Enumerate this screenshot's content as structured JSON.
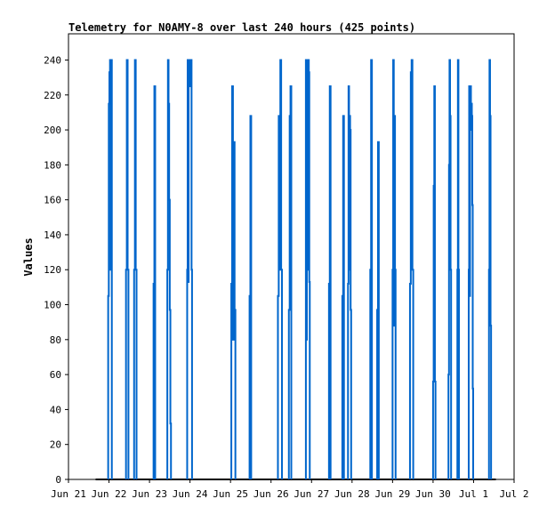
{
  "chart_data": {
    "type": "line",
    "title": "Telemetry for N0AMY-8 over last 240 hours (425 points)",
    "xlabel": "",
    "ylabel": "Values",
    "xlim": [
      0,
      11
    ],
    "ylim": [
      0,
      255
    ],
    "x_ticks": [
      {
        "label": "Jun 21",
        "value": 0
      },
      {
        "label": "Jun 22",
        "value": 1
      },
      {
        "label": "Jun 23",
        "value": 2
      },
      {
        "label": "Jun 24",
        "value": 3
      },
      {
        "label": "Jun 25",
        "value": 4
      },
      {
        "label": "Jun 26",
        "value": 5
      },
      {
        "label": "Jun 27",
        "value": 6
      },
      {
        "label": "Jun 28",
        "value": 7
      },
      {
        "label": "Jun 29",
        "value": 8
      },
      {
        "label": "Jun 30",
        "value": 9
      },
      {
        "label": "Jul 1",
        "value": 10
      },
      {
        "label": "Jul 2",
        "value": 11
      }
    ],
    "y_ticks": [
      0,
      20,
      40,
      60,
      80,
      100,
      120,
      140,
      160,
      180,
      200,
      220,
      240
    ],
    "grid": false,
    "colors": {
      "series": "#0066cc",
      "baseline": "#000000",
      "axes": "#000000"
    },
    "series": [
      {
        "color": "#0066cc",
        "bursts": [
          {
            "x": 0.98,
            "dx": 0.015,
            "values": [
              105,
              215,
              233,
              240,
              120,
              240
            ]
          },
          {
            "x": 1.42,
            "dx": 0.02,
            "values": [
              120,
              240,
              120
            ]
          },
          {
            "x": 1.62,
            "dx": 0.02,
            "values": [
              120,
              240,
              120
            ]
          },
          {
            "x": 2.1,
            "dx": 0.02,
            "values": [
              112,
              225
            ]
          },
          {
            "x": 2.44,
            "dx": 0.015,
            "values": [
              120,
              240,
              215,
              160,
              97,
              32
            ]
          },
          {
            "x": 2.93,
            "dx": 0.012,
            "values": [
              120,
              240,
              113,
              240,
              225,
              233,
              240,
              225,
              240,
              120
            ]
          },
          {
            "x": 4.02,
            "dx": 0.02,
            "values": [
              112,
              225,
              80,
              193,
              97
            ]
          },
          {
            "x": 4.47,
            "dx": 0.02,
            "values": [
              105,
              208
            ]
          },
          {
            "x": 5.17,
            "dx": 0.02,
            "values": [
              105,
              208,
              120,
              240,
              120
            ]
          },
          {
            "x": 5.44,
            "dx": 0.02,
            "values": [
              97,
              208,
              225
            ]
          },
          {
            "x": 5.86,
            "dx": 0.012,
            "values": [
              240,
              80,
              185,
              240,
              120,
              240,
              233,
              113
            ]
          },
          {
            "x": 6.43,
            "dx": 0.02,
            "values": [
              112,
              225
            ]
          },
          {
            "x": 6.76,
            "dx": 0.02,
            "values": [
              105,
              208
            ]
          },
          {
            "x": 6.9,
            "dx": 0.013,
            "values": [
              112,
              225,
              120,
              208,
              200,
              97
            ]
          },
          {
            "x": 7.45,
            "dx": 0.02,
            "values": [
              120,
              240
            ]
          },
          {
            "x": 7.62,
            "dx": 0.02,
            "values": [
              97,
              193
            ]
          },
          {
            "x": 8.0,
            "dx": 0.015,
            "values": [
              120,
              240,
              88,
              208,
              120
            ]
          },
          {
            "x": 8.43,
            "dx": 0.02,
            "values": [
              112,
              233,
              240,
              120
            ]
          },
          {
            "x": 9.0,
            "dx": 0.015,
            "values": [
              56,
              168,
              225,
              56
            ]
          },
          {
            "x": 9.38,
            "dx": 0.013,
            "values": [
              60,
              180,
              240,
              208,
              120
            ]
          },
          {
            "x": 9.6,
            "dx": 0.013,
            "values": [
              120,
              240,
              120
            ]
          },
          {
            "x": 9.88,
            "dx": 0.011,
            "values": [
              120,
              225,
              105,
              208,
              225,
              200,
              215,
              208,
              157,
              52
            ]
          },
          {
            "x": 10.38,
            "dx": 0.013,
            "values": [
              120,
              240,
              208,
              88
            ]
          }
        ]
      }
    ]
  }
}
